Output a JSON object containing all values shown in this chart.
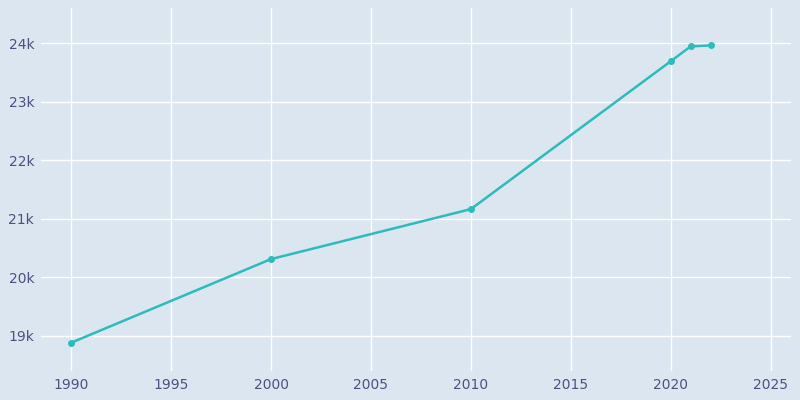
{
  "years": [
    1990,
    2000,
    2010,
    2020,
    2021,
    2022
  ],
  "population": [
    18879,
    20310,
    21165,
    23695,
    23950,
    23965
  ],
  "line_color": "#2bbcbb",
  "marker_color": "#2bbcbb",
  "bg_color": "#dce6f0",
  "grid_color": "#ffffff",
  "tick_color": "#4a5280",
  "xlim": [
    1988.5,
    2026
  ],
  "ylim": [
    18400,
    24600
  ],
  "xticks": [
    1990,
    1995,
    2000,
    2005,
    2010,
    2015,
    2020,
    2025
  ],
  "yticks": [
    19000,
    20000,
    21000,
    22000,
    23000,
    24000
  ],
  "ytick_labels": [
    "19k",
    "20k",
    "21k",
    "22k",
    "23k",
    "24k"
  ]
}
